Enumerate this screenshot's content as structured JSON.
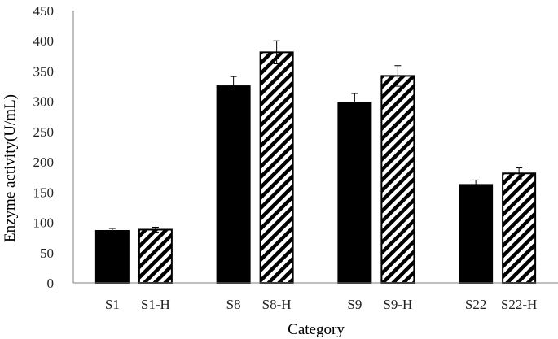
{
  "chart_data": {
    "type": "bar",
    "ylabel": "Enzyme activity(U/mL)",
    "xlabel": "Category",
    "ylim": [
      0,
      450
    ],
    "ytick_step": 50,
    "grid": false,
    "legend": "none",
    "groups": [
      {
        "bars": [
          {
            "category": "S1",
            "value": 86,
            "error": 4,
            "pattern": "solid"
          },
          {
            "category": "S1-H",
            "value": 88,
            "error": 4,
            "pattern": "hatched"
          }
        ]
      },
      {
        "bars": [
          {
            "category": "S8",
            "value": 325,
            "error": 16,
            "pattern": "solid"
          },
          {
            "category": "S8-H",
            "value": 381,
            "error": 19,
            "pattern": "hatched"
          }
        ]
      },
      {
        "bars": [
          {
            "category": "S9",
            "value": 298,
            "error": 15,
            "pattern": "solid"
          },
          {
            "category": "S9-H",
            "value": 342,
            "error": 17,
            "pattern": "hatched"
          }
        ]
      },
      {
        "bars": [
          {
            "category": "S22",
            "value": 162,
            "error": 8,
            "pattern": "solid"
          },
          {
            "category": "S22-H",
            "value": 181,
            "error": 9,
            "pattern": "hatched"
          }
        ]
      }
    ],
    "colors": {
      "bar_fill": "#000000",
      "hatch": "#000000",
      "axis": "#7f7f7f",
      "text": "#222222"
    }
  }
}
